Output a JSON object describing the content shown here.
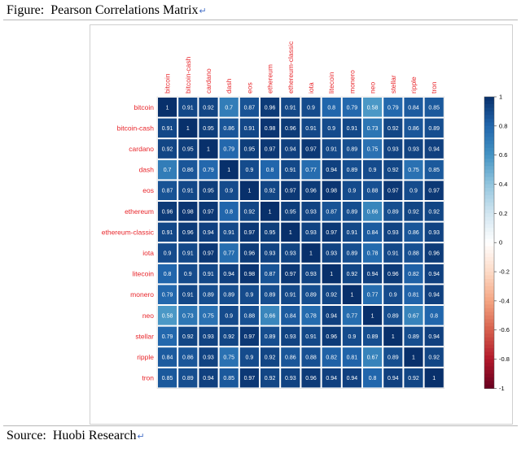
{
  "figure": {
    "label": "Figure:",
    "title": "Pearson Correlations Matrix",
    "return_mark": "↵"
  },
  "source": {
    "label": "Source:",
    "text": "Huobi Research",
    "return_mark": "↵"
  },
  "chart_data": {
    "type": "heatmap",
    "title": "Pearson Correlations Matrix",
    "labels": [
      "bitcoin",
      "bitcoin-cash",
      "cardano",
      "dash",
      "eos",
      "ethereum",
      "ethereum-classic",
      "iota",
      "litecoin",
      "monero",
      "neo",
      "stellar",
      "ripple",
      "tron"
    ],
    "values": [
      [
        1,
        0.91,
        0.92,
        0.7,
        0.87,
        0.96,
        0.91,
        0.9,
        0.8,
        0.79,
        0.58,
        0.79,
        0.84,
        0.85
      ],
      [
        0.91,
        1,
        0.95,
        0.86,
        0.91,
        0.98,
        0.96,
        0.91,
        0.9,
        0.91,
        0.73,
        0.92,
        0.86,
        0.89
      ],
      [
        0.92,
        0.95,
        1,
        0.79,
        0.95,
        0.97,
        0.94,
        0.97,
        0.91,
        0.89,
        0.75,
        0.93,
        0.93,
        0.94
      ],
      [
        0.7,
        0.86,
        0.79,
        1,
        0.9,
        0.8,
        0.91,
        0.77,
        0.94,
        0.89,
        0.9,
        0.92,
        0.75,
        0.85
      ],
      [
        0.87,
        0.91,
        0.95,
        0.9,
        1,
        0.92,
        0.97,
        0.96,
        0.98,
        0.9,
        0.88,
        0.97,
        0.9,
        0.97
      ],
      [
        0.96,
        0.98,
        0.97,
        0.8,
        0.92,
        1,
        0.95,
        0.93,
        0.87,
        0.89,
        0.66,
        0.89,
        0.92,
        0.92
      ],
      [
        0.91,
        0.96,
        0.94,
        0.91,
        0.97,
        0.95,
        1,
        0.93,
        0.97,
        0.91,
        0.84,
        0.93,
        0.86,
        0.93
      ],
      [
        0.9,
        0.91,
        0.97,
        0.77,
        0.96,
        0.93,
        0.93,
        1,
        0.93,
        0.89,
        0.78,
        0.91,
        0.88,
        0.96
      ],
      [
        0.8,
        0.9,
        0.91,
        0.94,
        0.98,
        0.87,
        0.97,
        0.93,
        1,
        0.92,
        0.94,
        0.96,
        0.82,
        0.94
      ],
      [
        0.79,
        0.91,
        0.89,
        0.89,
        0.9,
        0.89,
        0.91,
        0.89,
        0.92,
        1,
        0.77,
        0.9,
        0.81,
        0.94
      ],
      [
        0.58,
        0.73,
        0.75,
        0.9,
        0.88,
        0.66,
        0.84,
        0.78,
        0.94,
        0.77,
        1,
        0.89,
        0.67,
        0.8
      ],
      [
        0.79,
        0.92,
        0.93,
        0.92,
        0.97,
        0.89,
        0.93,
        0.91,
        0.96,
        0.9,
        0.89,
        1,
        0.89,
        0.94
      ],
      [
        0.84,
        0.86,
        0.93,
        0.75,
        0.9,
        0.92,
        0.86,
        0.88,
        0.82,
        0.81,
        0.67,
        0.89,
        1,
        0.92
      ],
      [
        0.85,
        0.89,
        0.94,
        0.85,
        0.97,
        0.92,
        0.93,
        0.96,
        0.94,
        0.94,
        0.8,
        0.94,
        0.92,
        1
      ]
    ],
    "colorbar": {
      "range": [
        -1,
        1
      ],
      "ticks": [
        "1",
        "0.8",
        "0.6",
        "0.4",
        "0.2",
        "0",
        "-0.2",
        "-0.4",
        "-0.6",
        "-0.8",
        "-1"
      ]
    },
    "colors": {
      "positive": "#08306b",
      "neutral": "#ffffff",
      "negative": "#67001f",
      "label": "#e8262b"
    }
  }
}
